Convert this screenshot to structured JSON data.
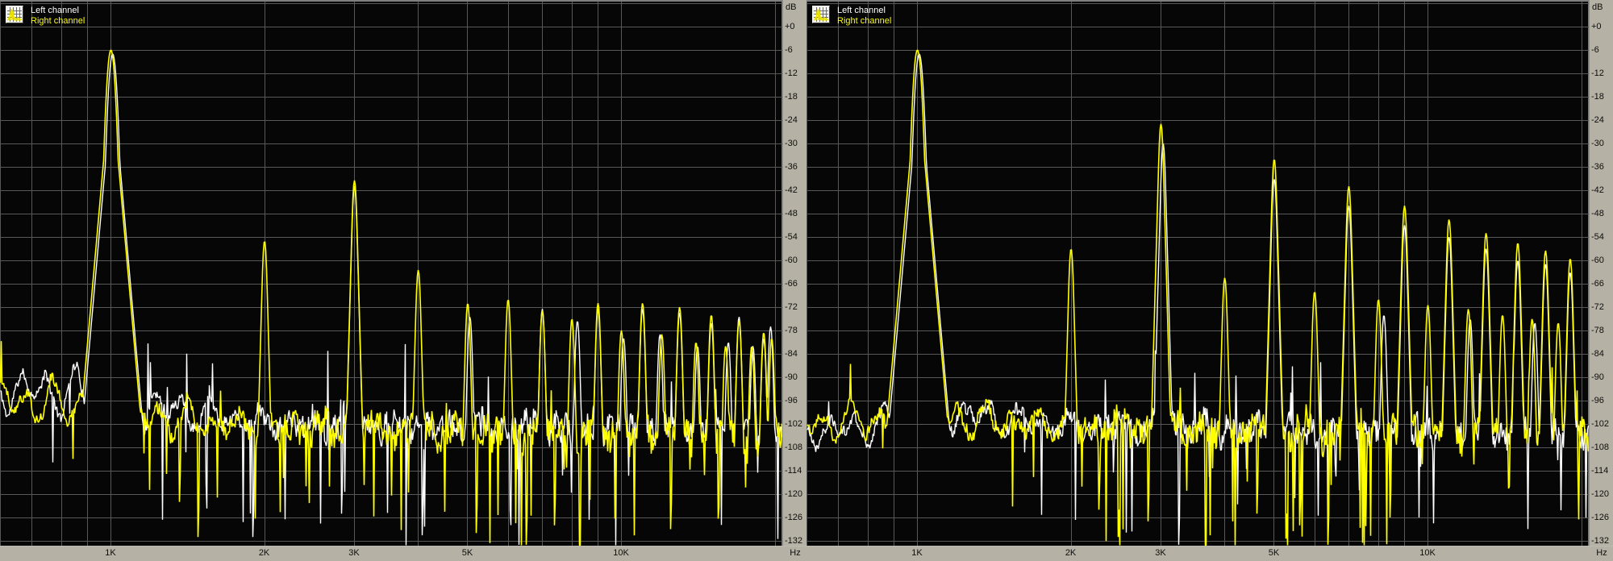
{
  "legend": {
    "left_label": "Left channel",
    "right_label": "Right channel"
  },
  "colors": {
    "left_channel": "#ffffff",
    "right_channel": "#ffff00",
    "plot_bg": "#060606",
    "grid": "#585858",
    "top_border": "#7f7f7f",
    "strip_bg": "#b5b2a5",
    "strip_text": "#0d0d0d"
  },
  "icons": {
    "legend_icon": "mini-spectrum-icon"
  },
  "axes": {
    "db_unit_label": "dB",
    "hz_unit_label": "Hz",
    "db_ticks": [
      "+0",
      "-6",
      "-12",
      "-18",
      "-24",
      "-30",
      "-36",
      "-42",
      "-48",
      "-54",
      "-60",
      "-66",
      "-72",
      "-78",
      "-84",
      "-90",
      "-96",
      "-102",
      "-108",
      "-114",
      "-120",
      "-126",
      "-132"
    ],
    "db_range": [
      -132,
      0
    ],
    "db_step": 6,
    "freq_ticks": [
      {
        "hz": 1000,
        "label": "1K"
      },
      {
        "hz": 2000,
        "label": "2K"
      },
      {
        "hz": 3000,
        "label": "3K"
      },
      {
        "hz": 5000,
        "label": "5K"
      },
      {
        "hz": 10000,
        "label": "10K"
      }
    ],
    "freq_gridlines_hz": [
      700,
      800,
      900,
      1000,
      2000,
      3000,
      4000,
      5000,
      6000,
      7000,
      8000,
      9000,
      10000,
      20000
    ],
    "freq_range_hz": [
      600,
      20700
    ],
    "x_scale": "log"
  },
  "chart_data": [
    {
      "panel": "left-graph",
      "type": "line",
      "x_scale": "log",
      "xlabel": "Hz",
      "ylabel": "dB",
      "xlim_hz": [
        600,
        20700
      ],
      "ylim_db": [
        -133,
        6
      ],
      "series": [
        {
          "name": "Left channel",
          "color": "#ffffff",
          "harmonics_hz_db": [
            [
              1008,
              -7
            ],
            [
              3000,
              -41
            ],
            [
              5050,
              -74.5
            ],
            [
              7000,
              -72.5
            ],
            [
              8200,
              -75.5
            ],
            [
              9000,
              -72.5
            ],
            [
              10100,
              -80
            ],
            [
              11000,
              -72.5
            ],
            [
              11900,
              -79
            ],
            [
              13000,
              -73.5
            ],
            [
              14100,
              -82
            ],
            [
              15000,
              -76
            ],
            [
              16200,
              -81
            ],
            [
              17000,
              -74.5
            ],
            [
              18100,
              -82
            ],
            [
              19000,
              -80
            ],
            [
              19600,
              -77
            ]
          ],
          "dropouts_hz_db": [
            [
              1900,
              -131
            ],
            [
              2830,
              -125
            ],
            [
              8300,
              -124
            ],
            [
              11050,
              -122
            ]
          ],
          "noise": {
            "seed": 11,
            "mean_db": [
              [
                0,
                -93
              ],
              [
                115,
                -94
              ],
              [
                165,
                -97
              ],
              [
                340,
                -102
              ],
              [
                970,
                -104
              ]
            ],
            "slow_amp_db": [
              [
                0,
                6.5
              ],
              [
                150,
                7.5
              ],
              [
                340,
                2.5
              ],
              [
                970,
                2
              ]
            ],
            "jitter_db": [
              [
                0,
                1.2
              ],
              [
                300,
                1.8
              ],
              [
                380,
                3
              ],
              [
                970,
                3.2
              ]
            ],
            "spike_prob": [
              [
                0,
                0.004
              ],
              [
                170,
                0.012
              ],
              [
                340,
                0.05
              ],
              [
                970,
                0.06
              ]
            ],
            "spike_depth_db": 26,
            "pop_prob": 0.02,
            "pop_height_db": 16
          }
        },
        {
          "name": "Right channel",
          "color": "#ffff00",
          "harmonics_hz_db": [
            [
              1000,
              -6
            ],
            [
              2000,
              -55
            ],
            [
              3000,
              -39.5
            ],
            [
              4000,
              -62.5
            ],
            [
              5000,
              -71
            ],
            [
              6000,
              -70
            ],
            [
              7000,
              -73
            ],
            [
              8000,
              -75
            ],
            [
              9000,
              -71
            ],
            [
              10000,
              -78
            ],
            [
              11000,
              -71
            ],
            [
              12000,
              -79
            ],
            [
              13000,
              -72
            ],
            [
              14000,
              -81
            ],
            [
              15000,
              -74
            ],
            [
              16000,
              -82
            ],
            [
              17000,
              -75.5
            ],
            [
              18000,
              -82
            ],
            [
              19000,
              -78.5
            ],
            [
              19700,
              -80
            ]
          ],
          "dropouts_hz_db": [
            [
              1360,
              -122
            ],
            [
              1480,
              -131
            ],
            [
              5200,
              -130
            ],
            [
              6500,
              -133
            ],
            [
              7400,
              -128
            ],
            [
              9700,
              -131
            ],
            [
              12500,
              -129
            ],
            [
              15500,
              -127
            ]
          ],
          "noise": {
            "seed": 12,
            "mean_db": [
              [
                0,
                -96
              ],
              [
                115,
                -97
              ],
              [
                165,
                -100
              ],
              [
                340,
                -103
              ],
              [
                970,
                -105
              ]
            ],
            "slow_amp_db": [
              [
                0,
                6
              ],
              [
                150,
                7
              ],
              [
                340,
                2.5
              ],
              [
                970,
                2
              ]
            ],
            "jitter_db": [
              [
                0,
                1.2
              ],
              [
                300,
                2
              ],
              [
                380,
                3.2
              ],
              [
                970,
                3.6
              ]
            ],
            "spike_prob": [
              [
                0,
                0.004
              ],
              [
                170,
                0.012
              ],
              [
                340,
                0.065
              ],
              [
                970,
                0.075
              ]
            ],
            "spike_depth_db": 28,
            "pop_prob": 0.01,
            "pop_height_db": 10
          }
        }
      ]
    },
    {
      "panel": "right-graph",
      "type": "line",
      "x_scale": "log",
      "xlabel": "Hz",
      "ylabel": "dB",
      "xlim_hz": [
        600,
        20700
      ],
      "ylim_db": [
        -133,
        6
      ],
      "series": [
        {
          "name": "Left channel",
          "color": "#ffffff",
          "harmonics_hz_db": [
            [
              1008,
              -7
            ],
            [
              3030,
              -30
            ],
            [
              5000,
              -39
            ],
            [
              7000,
              -46
            ],
            [
              8200,
              -74
            ],
            [
              9000,
              -51
            ],
            [
              11000,
              -54
            ],
            [
              12100,
              -75
            ],
            [
              13000,
              -57
            ],
            [
              15000,
              -60
            ],
            [
              16200,
              -76
            ],
            [
              17000,
              -61
            ],
            [
              19000,
              -63
            ]
          ],
          "dropouts_hz_db": [
            [
              3250,
              -133
            ],
            [
              8400,
              -126
            ]
          ],
          "noise": {
            "seed": 21,
            "mean_db": [
              [
                0,
                -104
              ],
              [
                120,
                -102
              ],
              [
                170,
                -99
              ],
              [
                340,
                -103
              ],
              [
                970,
                -105
              ]
            ],
            "slow_amp_db": [
              [
                0,
                4
              ],
              [
                150,
                6
              ],
              [
                340,
                2.5
              ],
              [
                970,
                2
              ]
            ],
            "jitter_db": [
              [
                0,
                1.2
              ],
              [
                300,
                1.8
              ],
              [
                380,
                3
              ],
              [
                970,
                3.2
              ]
            ],
            "spike_prob": [
              [
                0,
                0.004
              ],
              [
                170,
                0.012
              ],
              [
                340,
                0.055
              ],
              [
                970,
                0.065
              ]
            ],
            "spike_depth_db": 27,
            "pop_prob": 0.02,
            "pop_height_db": 15
          }
        },
        {
          "name": "Right channel",
          "color": "#ffff00",
          "harmonics_hz_db": [
            [
              1000,
              -6
            ],
            [
              2000,
              -57
            ],
            [
              3000,
              -25
            ],
            [
              4000,
              -64.5
            ],
            [
              5000,
              -34
            ],
            [
              6000,
              -68
            ],
            [
              7000,
              -41
            ],
            [
              8000,
              -70
            ],
            [
              9000,
              -46
            ],
            [
              10000,
              -71.5
            ],
            [
              11000,
              -49.5
            ],
            [
              12000,
              -72.5
            ],
            [
              13000,
              -53
            ],
            [
              14000,
              -74
            ],
            [
              15000,
              -55.5
            ],
            [
              16000,
              -75
            ],
            [
              17000,
              -57.5
            ],
            [
              18000,
              -76
            ],
            [
              19000,
              -59.5
            ]
          ],
          "dropouts_hz_db": [
            [
              2270,
              -124
            ],
            [
              2470,
              -131
            ],
            [
              2830,
              -127
            ],
            [
              4620,
              -125
            ],
            [
              5270,
              -132
            ],
            [
              5600,
              -128
            ],
            [
              6380,
              -133
            ],
            [
              8420,
              -126
            ],
            [
              12050,
              -130
            ],
            [
              13100,
              -127
            ],
            [
              14400,
              -125
            ]
          ],
          "noise": {
            "seed": 22,
            "mean_db": [
              [
                0,
                -102
              ],
              [
                120,
                -100
              ],
              [
                170,
                -100
              ],
              [
                340,
                -103
              ],
              [
                970,
                -105
              ]
            ],
            "slow_amp_db": [
              [
                0,
                4.5
              ],
              [
                150,
                6.5
              ],
              [
                340,
                2.5
              ],
              [
                970,
                2
              ]
            ],
            "jitter_db": [
              [
                0,
                1.2
              ],
              [
                300,
                2
              ],
              [
                380,
                3.2
              ],
              [
                970,
                3.6
              ]
            ],
            "spike_prob": [
              [
                0,
                0.004
              ],
              [
                170,
                0.015
              ],
              [
                340,
                0.07
              ],
              [
                970,
                0.08
              ]
            ],
            "spike_depth_db": 29,
            "pop_prob": 0.01,
            "pop_height_db": 10
          }
        }
      ]
    }
  ]
}
